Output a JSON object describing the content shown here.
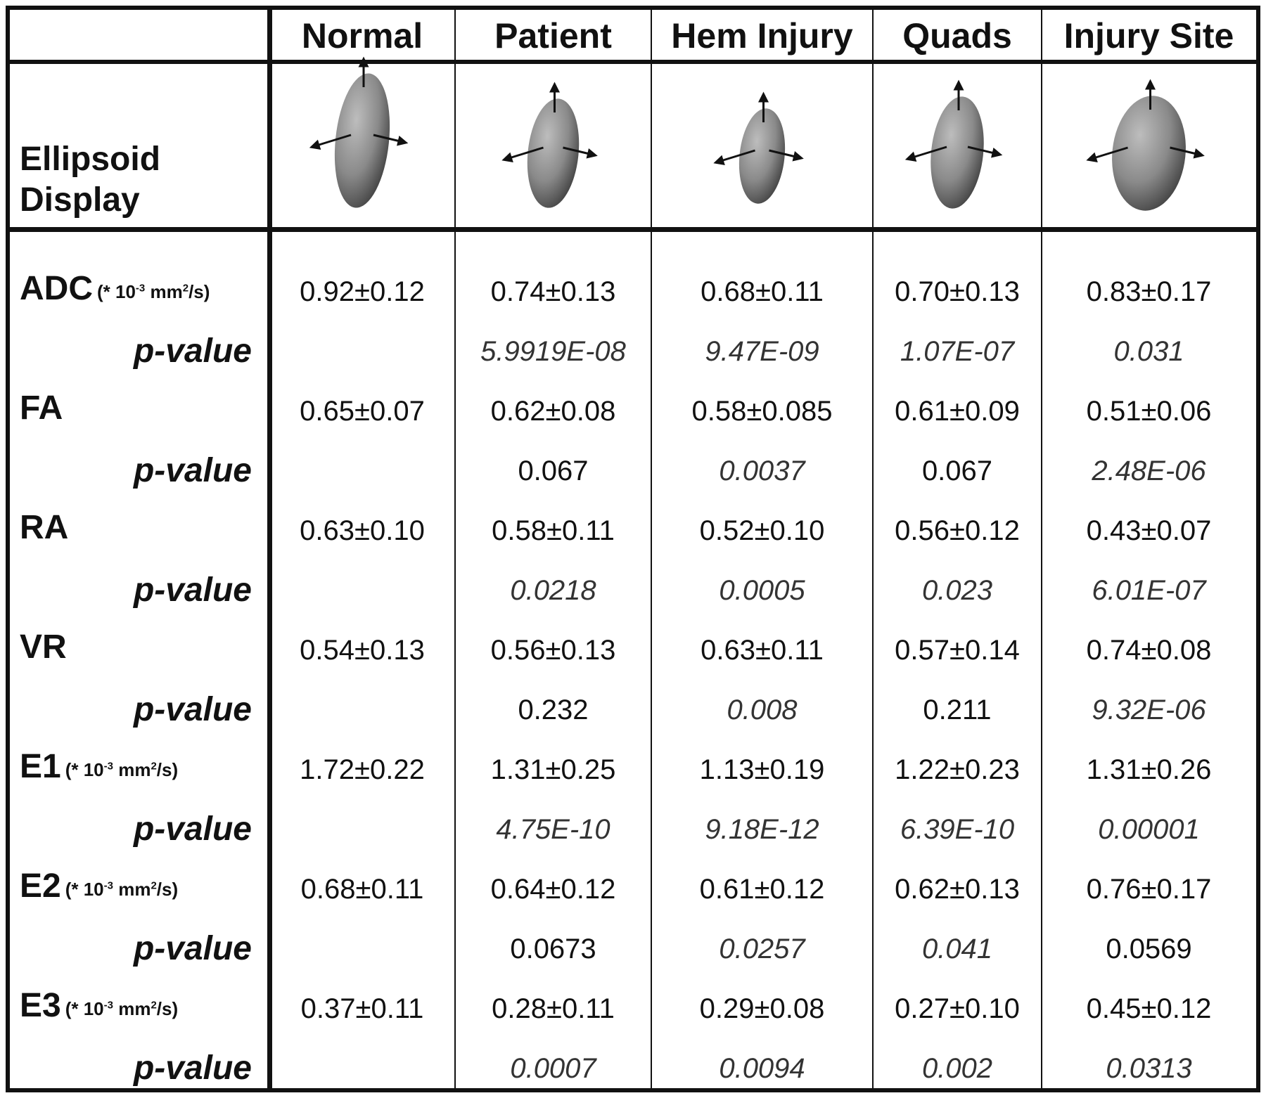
{
  "table": {
    "columns": [
      "Normal",
      "Patient",
      "Hem Injury",
      "Quads",
      "Injury Site"
    ],
    "ellipsoid_label": [
      "Ellipsoid",
      "Display"
    ],
    "p_label": "p-value",
    "rows": [
      {
        "metric": "ADC",
        "unit": "(* 10-3 mm2/s)",
        "unit_a": "(* 10",
        "unit_exp1": "-3",
        "unit_b": " mm",
        "unit_exp2": "2",
        "unit_c": "/s)",
        "values": [
          "0.92±0.12",
          "0.74±0.13",
          "0.68±0.11",
          "0.70±0.13",
          "0.83±0.17"
        ],
        "p": [
          "",
          "5.9919E-08",
          "9.47E-09",
          "1.07E-07",
          "0.031"
        ],
        "p_italic": [
          false,
          true,
          true,
          true,
          true
        ]
      },
      {
        "metric": "FA",
        "unit": "",
        "values": [
          "0.65±0.07",
          "0.62±0.08",
          "0.58±0.085",
          "0.61±0.09",
          "0.51±0.06"
        ],
        "p": [
          "",
          "0.067",
          "0.0037",
          "0.067",
          "2.48E-06"
        ],
        "p_italic": [
          false,
          false,
          true,
          false,
          true
        ]
      },
      {
        "metric": "RA",
        "unit": "",
        "values": [
          "0.63±0.10",
          "0.58±0.11",
          "0.52±0.10",
          "0.56±0.12",
          "0.43±0.07"
        ],
        "p": [
          "",
          "0.0218",
          "0.0005",
          "0.023",
          "6.01E-07"
        ],
        "p_italic": [
          false,
          true,
          true,
          true,
          true
        ]
      },
      {
        "metric": "VR",
        "unit": "",
        "values": [
          "0.54±0.13",
          "0.56±0.13",
          "0.63±0.11",
          "0.57±0.14",
          "0.74±0.08"
        ],
        "p": [
          "",
          "0.232",
          "0.008",
          "0.211",
          "9.32E-06"
        ],
        "p_italic": [
          false,
          false,
          true,
          false,
          true
        ]
      },
      {
        "metric": "E1",
        "unit": "(* 10-3 mm2/s)",
        "unit_a": "(* 10",
        "unit_exp1": "-3",
        "unit_b": " mm",
        "unit_exp2": "2",
        "unit_c": "/s)",
        "values": [
          "1.72±0.22",
          "1.31±0.25",
          "1.13±0.19",
          "1.22±0.23",
          "1.31±0.26"
        ],
        "p": [
          "",
          "4.75E-10",
          "9.18E-12",
          "6.39E-10",
          "0.00001"
        ],
        "p_italic": [
          false,
          true,
          true,
          true,
          true
        ]
      },
      {
        "metric": "E2",
        "unit": "(* 10-3 mm2/s)",
        "unit_a": "(* 10",
        "unit_exp1": "-3",
        "unit_b": " mm",
        "unit_exp2": "2",
        "unit_c": "/s)",
        "values": [
          "0.68±0.11",
          "0.64±0.12",
          "0.61±0.12",
          "0.62±0.13",
          "0.76±0.17"
        ],
        "p": [
          "",
          "0.0673",
          "0.0257",
          "0.041",
          "0.0569"
        ],
        "p_italic": [
          false,
          false,
          true,
          true,
          false
        ]
      },
      {
        "metric": "E3",
        "unit": "(* 10-3 mm2/s)",
        "unit_a": "(* 10",
        "unit_exp1": "-3",
        "unit_b": " mm",
        "unit_exp2": "2",
        "unit_c": "/s)",
        "values": [
          "0.37±0.11",
          "0.28±0.11",
          "0.29±0.08",
          "0.27±0.10",
          "0.45±0.12"
        ],
        "p": [
          "",
          "0.0007",
          "0.0094",
          "0.002",
          "0.0313"
        ],
        "p_italic": [
          false,
          true,
          true,
          true,
          true
        ]
      }
    ]
  },
  "colors": {
    "ink": "#111111",
    "ellipsoid_light": "#9a9a9a",
    "ellipsoid_dark": "#4a4a4a"
  }
}
